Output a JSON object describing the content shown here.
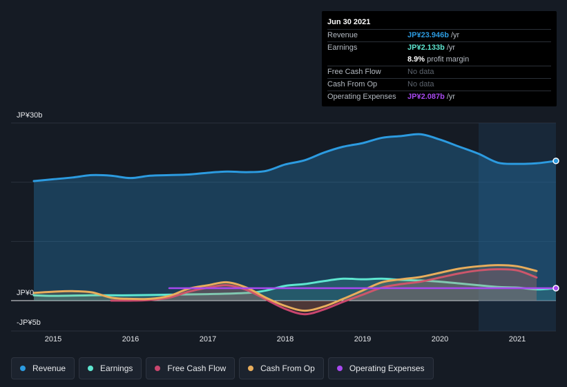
{
  "tooltip": {
    "date": "Jun 30 2021",
    "revenue_label": "Revenue",
    "revenue_value": "JP¥23.946b",
    "earnings_label": "Earnings",
    "earnings_value": "JP¥2.133b",
    "margin_value": "8.9%",
    "margin_text": "profit margin",
    "fcf_label": "Free Cash Flow",
    "fcf_value": "No data",
    "cfo_label": "Cash From Op",
    "cfo_value": "No data",
    "opex_label": "Operating Expenses",
    "opex_value": "JP¥2.087b",
    "unit": "/yr"
  },
  "legend": {
    "revenue": "Revenue",
    "earnings": "Earnings",
    "fcf": "Free Cash Flow",
    "cfo": "Cash From Op",
    "opex": "Operating Expenses"
  },
  "colors": {
    "revenue": "#2c9be0",
    "earnings": "#5ee6d0",
    "fcf": "#c9466e",
    "cfo": "#e8ad5c",
    "opex": "#a849f0"
  },
  "chart_data": {
    "type": "line",
    "title": "",
    "xlabel": "",
    "ylabel": "",
    "y_tick_labels": {
      "top": "JP¥30b",
      "zero": "JP¥0",
      "bottom": "-JP¥5b"
    },
    "ylim": [
      -5,
      30
    ],
    "xlim": [
      2014.5,
      2021.5
    ],
    "x_ticks": [
      2015,
      2016,
      2017,
      2018,
      2019,
      2020,
      2021
    ],
    "x_tick_labels": [
      "2015",
      "2016",
      "2017",
      "2018",
      "2019",
      "2020",
      "2021"
    ],
    "highlight_start": 2020.5,
    "series": [
      {
        "key": "revenue",
        "name": "Revenue",
        "fill": true,
        "points": [
          [
            2014.75,
            20.2
          ],
          [
            2015.0,
            20.5
          ],
          [
            2015.25,
            20.8
          ],
          [
            2015.5,
            21.2
          ],
          [
            2015.75,
            21.1
          ],
          [
            2016.0,
            20.7
          ],
          [
            2016.25,
            21.1
          ],
          [
            2016.5,
            21.2
          ],
          [
            2016.75,
            21.3
          ],
          [
            2017.0,
            21.6
          ],
          [
            2017.25,
            21.8
          ],
          [
            2017.5,
            21.7
          ],
          [
            2017.75,
            21.9
          ],
          [
            2018.0,
            23.0
          ],
          [
            2018.25,
            23.7
          ],
          [
            2018.5,
            25.0
          ],
          [
            2018.75,
            26.0
          ],
          [
            2019.0,
            26.6
          ],
          [
            2019.25,
            27.5
          ],
          [
            2019.5,
            27.8
          ],
          [
            2019.75,
            28.1
          ],
          [
            2020.0,
            27.2
          ],
          [
            2020.25,
            26.0
          ],
          [
            2020.5,
            24.8
          ],
          [
            2020.75,
            23.3
          ],
          [
            2021.0,
            23.1
          ],
          [
            2021.25,
            23.2
          ],
          [
            2021.5,
            23.6
          ]
        ]
      },
      {
        "key": "earnings",
        "name": "Earnings",
        "points": [
          [
            2014.75,
            0.9
          ],
          [
            2015.0,
            0.8
          ],
          [
            2015.5,
            0.9
          ],
          [
            2016.0,
            0.9
          ],
          [
            2016.5,
            1.0
          ],
          [
            2017.0,
            1.1
          ],
          [
            2017.5,
            1.3
          ],
          [
            2017.75,
            1.7
          ],
          [
            2018.0,
            2.5
          ],
          [
            2018.25,
            2.8
          ],
          [
            2018.5,
            3.3
          ],
          [
            2018.75,
            3.7
          ],
          [
            2019.0,
            3.6
          ],
          [
            2019.25,
            3.7
          ],
          [
            2019.5,
            3.5
          ],
          [
            2019.75,
            3.4
          ],
          [
            2020.0,
            3.2
          ],
          [
            2020.25,
            2.9
          ],
          [
            2020.5,
            2.6
          ],
          [
            2020.75,
            2.3
          ],
          [
            2021.0,
            2.2
          ],
          [
            2021.25,
            1.9
          ],
          [
            2021.5,
            2.1
          ]
        ]
      },
      {
        "key": "fcf",
        "name": "Free Cash Flow",
        "points": [
          [
            2015.75,
            0.0
          ],
          [
            2016.0,
            0.0
          ],
          [
            2016.25,
            0.1
          ],
          [
            2016.5,
            0.5
          ],
          [
            2016.75,
            1.5
          ],
          [
            2017.0,
            2.2
          ],
          [
            2017.25,
            2.6
          ],
          [
            2017.5,
            1.8
          ],
          [
            2017.75,
            0.2
          ],
          [
            2018.0,
            -1.4
          ],
          [
            2018.25,
            -2.3
          ],
          [
            2018.5,
            -1.5
          ],
          [
            2018.75,
            -0.2
          ],
          [
            2019.0,
            1.0
          ],
          [
            2019.25,
            2.2
          ],
          [
            2019.5,
            2.8
          ],
          [
            2019.75,
            3.2
          ],
          [
            2020.0,
            3.9
          ],
          [
            2020.25,
            4.6
          ],
          [
            2020.5,
            5.1
          ],
          [
            2020.75,
            5.3
          ],
          [
            2021.0,
            5.1
          ],
          [
            2021.25,
            3.9
          ]
        ]
      },
      {
        "key": "cfo",
        "name": "Cash From Op",
        "points": [
          [
            2014.75,
            1.3
          ],
          [
            2015.0,
            1.5
          ],
          [
            2015.25,
            1.6
          ],
          [
            2015.5,
            1.4
          ],
          [
            2015.75,
            0.5
          ],
          [
            2016.0,
            0.3
          ],
          [
            2016.25,
            0.3
          ],
          [
            2016.5,
            0.8
          ],
          [
            2016.75,
            2.0
          ],
          [
            2017.0,
            2.6
          ],
          [
            2017.25,
            3.1
          ],
          [
            2017.5,
            2.2
          ],
          [
            2017.75,
            0.5
          ],
          [
            2018.0,
            -0.9
          ],
          [
            2018.25,
            -1.7
          ],
          [
            2018.5,
            -1.0
          ],
          [
            2018.75,
            0.3
          ],
          [
            2019.0,
            1.7
          ],
          [
            2019.25,
            3.1
          ],
          [
            2019.5,
            3.6
          ],
          [
            2019.75,
            4.0
          ],
          [
            2020.0,
            4.7
          ],
          [
            2020.25,
            5.4
          ],
          [
            2020.5,
            5.8
          ],
          [
            2020.75,
            6.0
          ],
          [
            2021.0,
            5.8
          ],
          [
            2021.25,
            5.0
          ]
        ]
      },
      {
        "key": "opex",
        "name": "Operating Expenses",
        "points": [
          [
            2016.5,
            2.1
          ],
          [
            2017.0,
            2.1
          ],
          [
            2017.5,
            2.1
          ],
          [
            2018.0,
            2.1
          ],
          [
            2018.5,
            2.1
          ],
          [
            2019.0,
            2.1
          ],
          [
            2019.5,
            2.1
          ],
          [
            2020.0,
            2.1
          ],
          [
            2020.5,
            2.1
          ],
          [
            2021.0,
            2.1
          ],
          [
            2021.5,
            2.1
          ]
        ]
      }
    ]
  }
}
